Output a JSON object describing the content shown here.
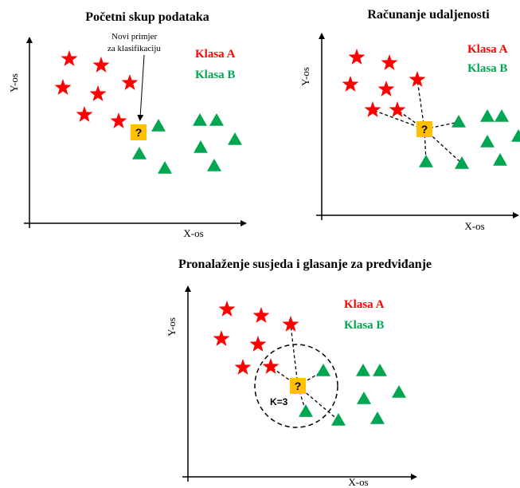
{
  "colors": {
    "class_a": "#ff0000",
    "class_b": "#00a650",
    "query": "#ffc000",
    "axis": "#000000"
  },
  "icons": {
    "class_a": "star-icon",
    "class_b": "triangle-icon",
    "query": "question-box-icon"
  },
  "legend": {
    "class_a": "Klasa A",
    "class_b": "Klasa B"
  },
  "axes": {
    "x": "X-os",
    "y": "Y-os"
  },
  "query_symbol": "?",
  "panels": [
    {
      "id": "initial",
      "title": "Početni skup podataka",
      "annotation": [
        "Novi primjer",
        "za klasifikaciju"
      ]
    },
    {
      "id": "distances",
      "title": "Računanje udaljenosti"
    },
    {
      "id": "neighbors",
      "title": "Pronalaženje susjeda i glasanje za predviđanje",
      "k_label": "K=3"
    }
  ]
}
